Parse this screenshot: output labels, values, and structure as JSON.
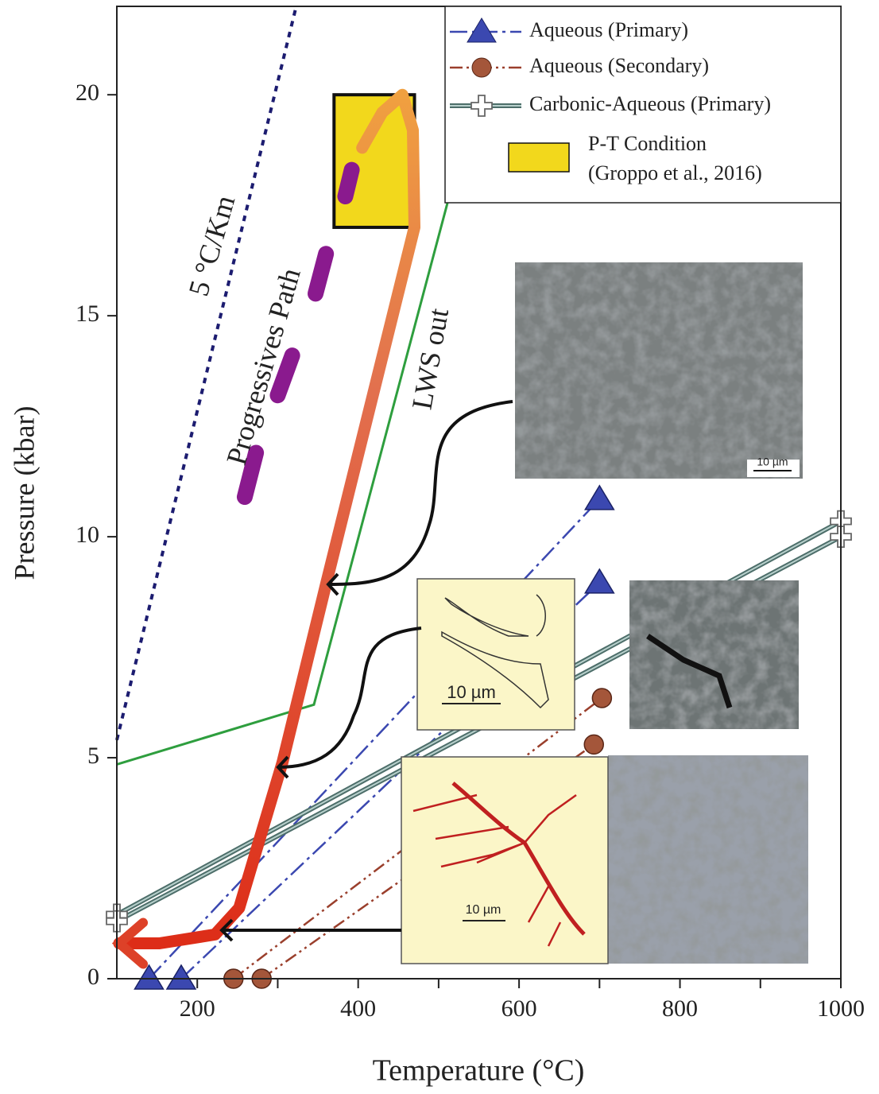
{
  "chart_data": {
    "type": "line",
    "x_label": "Temperature (°C)",
    "y_label": "Pressure (kbar)",
    "xlim": [
      100,
      1000
    ],
    "xticks": [
      200,
      400,
      600,
      800,
      1000
    ],
    "xminorticks": [
      300,
      500,
      700,
      900
    ],
    "ylim": [
      0,
      22
    ],
    "yticks": [
      0,
      5,
      10,
      15,
      20
    ],
    "series": [
      {
        "name": "Aqueous (Primary)",
        "color": "#3b48b0",
        "marker": "triangle",
        "dash": "22 6 4 6",
        "x": [
          140,
          700,
          null,
          180,
          700
        ],
        "values": [
          0,
          10.85,
          null,
          0,
          8.96
        ]
      },
      {
        "name": "Aqueous (Secondary)",
        "color": "#9a3f2c",
        "marker": "circle",
        "dash": "16 5 3 5 3 5",
        "x": [
          245,
          703,
          null,
          280,
          693
        ],
        "values": [
          0,
          6.35,
          null,
          0,
          5.3
        ]
      },
      {
        "name": "Carbonic-Aqueous (Primary)",
        "color": "#5f9088",
        "marker": "cross",
        "dash": "none",
        "x": [
          100,
          1000,
          null,
          100,
          1000
        ],
        "values": [
          1.45,
          10.35,
          null,
          1.3,
          10.0
        ]
      }
    ],
    "lines": [
      {
        "label": "5 °C/Km",
        "color": "#1c1c70",
        "dash": "7 7",
        "x": [
          100,
          323
        ],
        "values": [
          5.4,
          22
        ]
      },
      {
        "label": "LWS out",
        "color": "#2e9e3e",
        "dash": "none",
        "x": [
          100,
          345,
          511
        ],
        "values": [
          4.85,
          6.2,
          17.55
        ]
      }
    ],
    "pt_path": {
      "color": "#dd4128",
      "x": [
        405,
        430,
        455,
        468,
        470,
        361,
        306,
        252,
        222,
        153,
        103
      ],
      "values": [
        18.8,
        19.6,
        20,
        19.2,
        17,
        9.0,
        4.9,
        1.6,
        1.0,
        0.8,
        0.8
      ]
    },
    "progressive_path": {
      "label": "Progressives Path",
      "color": "#8a1a8e",
      "marks": [
        {
          "x": [
            259,
            273
          ],
          "values": [
            10.9,
            11.9
          ]
        },
        {
          "x": [
            300,
            318
          ],
          "values": [
            13.2,
            14.1
          ]
        },
        {
          "x": [
            347,
            360
          ],
          "values": [
            15.5,
            16.4
          ]
        },
        {
          "x": [
            384,
            392
          ],
          "values": [
            17.7,
            18.3
          ]
        }
      ]
    },
    "region": {
      "legend_label": [
        "P-T Condition",
        "(Groppo et al., 2016)"
      ],
      "color": "#f2d81c",
      "x": [
        370,
        470
      ],
      "values": [
        17,
        20
      ]
    },
    "scale_labels": [
      "10 µm",
      "10 µm",
      "10 µm"
    ]
  }
}
